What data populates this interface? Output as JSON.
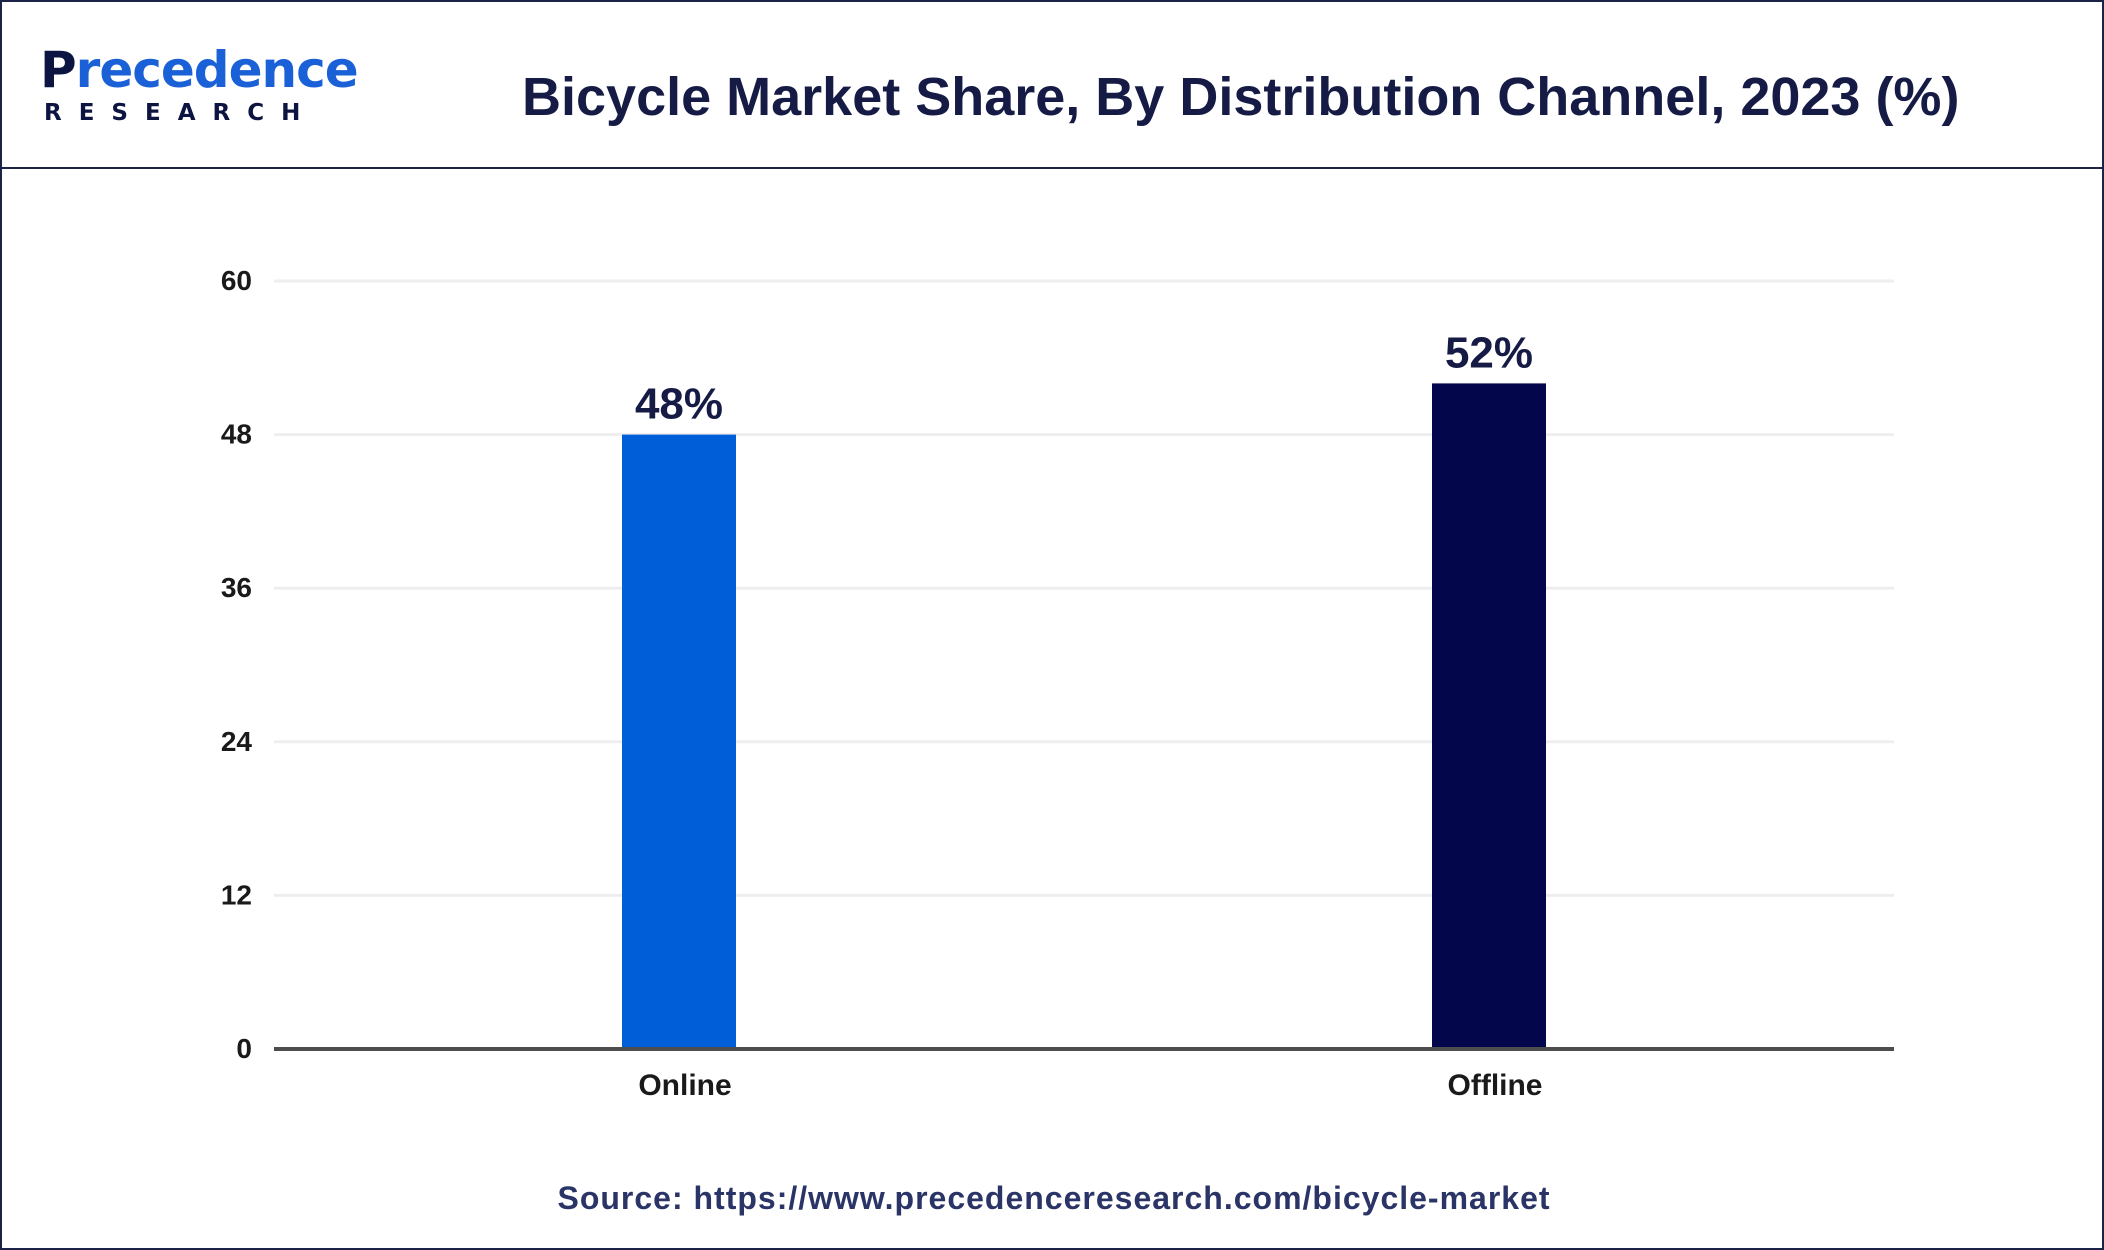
{
  "brand": {
    "logo_initial": "P",
    "logo_rest": "recedence",
    "logo_sub": "RESEARCH"
  },
  "source_text": "Source: https://www.precedenceresearch.com/bicycle-market",
  "chart_data": {
    "type": "bar",
    "title": "Bicycle Market Share, By Distribution Channel, 2023 (%)",
    "xlabel": "",
    "ylabel": "",
    "categories": [
      "Online",
      "Offline"
    ],
    "values": [
      48,
      52
    ],
    "data_labels": [
      "48%",
      "52%"
    ],
    "colors": [
      "#005ed9",
      "#03064a"
    ],
    "ylim": [
      0,
      60
    ],
    "yticks": [
      0,
      12,
      24,
      36,
      48,
      60
    ],
    "ytick_labels": [
      "0",
      "12",
      "24",
      "36",
      "48",
      "60"
    ],
    "grid": true,
    "legend": "none"
  }
}
